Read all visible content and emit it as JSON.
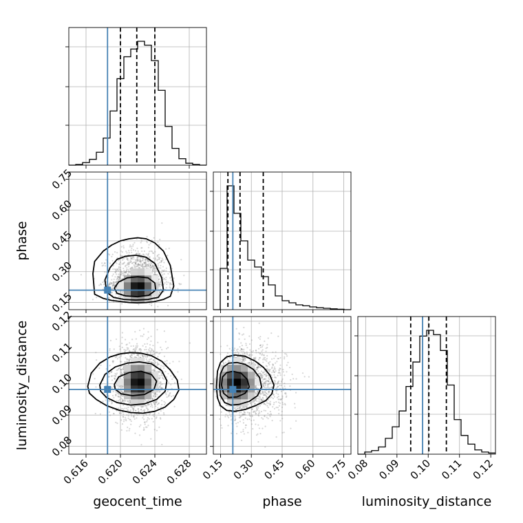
{
  "chart_data": {
    "type": "corner",
    "title": "",
    "parameters": [
      "geocent_time",
      "phase",
      "luminosity_distance"
    ],
    "truths": {
      "geocent_time": 0.6185,
      "phase": 0.21,
      "luminosity_distance": 0.0982
    },
    "colors": {
      "hist": "#000000",
      "truth": "#4682b4",
      "quantiles": "#000000",
      "points": "#8a8a8a",
      "density": "#000000",
      "grid": "#b0b0b0"
    },
    "ranges": {
      "geocent_time": [
        0.614,
        0.63
      ],
      "phase": [
        0.115,
        0.785
      ],
      "luminosity_distance": [
        0.0775,
        0.1215
      ]
    },
    "ticks": {
      "geocent_time": {
        "values": [
          0.616,
          0.62,
          0.624,
          0.628
        ],
        "labels": [
          "0.616",
          "0.620",
          "0.624",
          "0.628"
        ]
      },
      "phase": {
        "values": [
          0.15,
          0.3,
          0.45,
          0.6,
          0.75
        ],
        "labels": [
          "0.15",
          "0.30",
          "0.45",
          "0.60",
          "0.75"
        ]
      },
      "luminosity_distance": {
        "values": [
          0.08,
          0.09,
          0.1,
          0.11,
          0.12
        ],
        "labels": [
          "0.08",
          "0.09",
          "0.10",
          "0.11",
          "0.12"
        ]
      }
    },
    "marginals": {
      "geocent_time": {
        "edges": [
          0.614,
          0.6148,
          0.6156,
          0.6164,
          0.6172,
          0.618,
          0.6188,
          0.6196,
          0.6204,
          0.6212,
          0.622,
          0.6228,
          0.6236,
          0.6244,
          0.6252,
          0.626,
          0.6268,
          0.6276,
          0.6284,
          0.6292,
          0.63
        ],
        "counts": [
          0.0,
          0.005,
          0.02,
          0.045,
          0.1,
          0.21,
          0.42,
          0.67,
          0.84,
          0.9,
          0.96,
          0.93,
          0.81,
          0.58,
          0.3,
          0.13,
          0.05,
          0.015,
          0.005,
          0.0
        ],
        "quantiles": [
          0.62,
          0.6219,
          0.624
        ]
      },
      "phase": {
        "edges": [
          0.115,
          0.1485,
          0.182,
          0.2155,
          0.249,
          0.2825,
          0.316,
          0.3495,
          0.383,
          0.4165,
          0.45,
          0.4835,
          0.517,
          0.5505,
          0.584,
          0.6175,
          0.651,
          0.6845,
          0.718,
          0.7515,
          0.785
        ],
        "counts": [
          0.0,
          0.3,
          0.9,
          0.7,
          0.5,
          0.36,
          0.31,
          0.24,
          0.18,
          0.1,
          0.065,
          0.05,
          0.035,
          0.028,
          0.02,
          0.014,
          0.01,
          0.006,
          0.003,
          0.0
        ],
        "quantiles": [
          0.186,
          0.245,
          0.358
        ]
      },
      "luminosity_distance": {
        "edges": [
          0.0775,
          0.0797,
          0.0819,
          0.0841,
          0.0863,
          0.0885,
          0.0907,
          0.0929,
          0.0951,
          0.0973,
          0.0995,
          0.1017,
          0.1039,
          0.1061,
          0.1083,
          0.1105,
          0.1127,
          0.1149,
          0.1171,
          0.1193,
          0.1215
        ],
        "counts": [
          0.0,
          0.015,
          0.025,
          0.05,
          0.11,
          0.19,
          0.3,
          0.47,
          0.64,
          0.82,
          0.86,
          0.83,
          0.72,
          0.48,
          0.24,
          0.13,
          0.07,
          0.03,
          0.015,
          0.008
        ],
        "quantiles": [
          0.0944,
          0.1002,
          0.1058
        ]
      }
    },
    "joint": [
      {
        "x": "geocent_time",
        "y": "phase",
        "center": [
          0.6221,
          0.245
        ],
        "scatter_sd": [
          0.00165,
          0.085
        ],
        "density_sd": [
          0.00125,
          0.05
        ],
        "density_offset": [
          0.0,
          -0.02
        ],
        "contours": [
          {
            "level": "outer",
            "x": [
              0.6168,
              0.617,
              0.618,
              0.619,
              0.62,
              0.621,
              0.622,
              0.623,
              0.624,
              0.625,
              0.6258,
              0.6262,
              0.6258,
              0.625,
              0.624,
              0.623,
              0.622,
              0.621,
              0.62,
              0.619,
              0.618,
              0.617
            ],
            "y": [
              0.29,
              0.35,
              0.4,
              0.43,
              0.45,
              0.46,
              0.465,
              0.46,
              0.44,
              0.4,
              0.33,
              0.23,
              0.18,
              0.165,
              0.155,
              0.15,
              0.148,
              0.15,
              0.155,
              0.16,
              0.17,
              0.19
            ]
          },
          {
            "level": "middle",
            "x": [
              0.6182,
              0.6188,
              0.6196,
              0.6206,
              0.6218,
              0.623,
              0.624,
              0.6248,
              0.625,
              0.6244,
              0.6232,
              0.6218,
              0.6204,
              0.6192,
              0.6184
            ],
            "y": [
              0.26,
              0.32,
              0.36,
              0.375,
              0.38,
              0.37,
              0.34,
              0.27,
              0.21,
              0.175,
              0.165,
              0.162,
              0.165,
              0.175,
              0.2
            ]
          },
          {
            "level": "inner",
            "x": [
              0.6193,
              0.6198,
              0.6208,
              0.622,
              0.6232,
              0.624,
              0.6241,
              0.6233,
              0.622,
              0.6206,
              0.6196
            ],
            "y": [
              0.22,
              0.25,
              0.27,
              0.275,
              0.27,
              0.245,
              0.21,
              0.185,
              0.178,
              0.182,
              0.195
            ]
          }
        ]
      },
      {
        "x": "geocent_time",
        "y": "luminosity_distance",
        "center": [
          0.6221,
          0.1004
        ],
        "scatter_sd": [
          0.00165,
          0.0058
        ],
        "density_sd": [
          0.00125,
          0.0042
        ],
        "density_offset": [
          0.0,
          0.0
        ],
        "contours": [
          {
            "level": "outer",
            "x": [
              0.6162,
              0.6166,
              0.6176,
              0.6188,
              0.62,
              0.6212,
              0.6224,
              0.6236,
              0.6248,
              0.6258,
              0.6266,
              0.6268,
              0.6262,
              0.6252,
              0.624,
              0.6226,
              0.6212,
              0.6198,
              0.6184,
              0.6172,
              0.6164
            ],
            "y": [
              0.0992,
              0.1034,
              0.1066,
              0.1086,
              0.1096,
              0.11,
              0.1098,
              0.109,
              0.1072,
              0.1044,
              0.1012,
              0.098,
              0.095,
              0.0926,
              0.0912,
              0.0906,
              0.0908,
              0.0916,
              0.093,
              0.095,
              0.097
            ]
          },
          {
            "level": "middle",
            "x": [
              0.6176,
              0.6182,
              0.6194,
              0.6208,
              0.6222,
              0.6236,
              0.6248,
              0.6254,
              0.6252,
              0.6242,
              0.6228,
              0.6212,
              0.6196,
              0.6184,
              0.6177
            ],
            "y": [
              0.0996,
              0.103,
              0.1054,
              0.1066,
              0.107,
              0.1064,
              0.1042,
              0.101,
              0.0976,
              0.095,
              0.0936,
              0.0932,
              0.094,
              0.0956,
              0.0976
            ]
          },
          {
            "level": "inner",
            "x": [
              0.6193,
              0.6198,
              0.621,
              0.6224,
              0.6236,
              0.6242,
              0.6239,
              0.6228,
              0.6214,
              0.6201,
              0.6194
            ],
            "y": [
              0.0998,
              0.1022,
              0.1036,
              0.104,
              0.103,
              0.1008,
              0.0982,
              0.0966,
              0.0962,
              0.0968,
              0.0982
            ]
          }
        ]
      },
      {
        "x": "phase",
        "y": "luminosity_distance",
        "center": [
          0.27,
          0.1002
        ],
        "scatter_sd": [
          0.095,
          0.0058
        ],
        "density_sd": [
          0.06,
          0.0042
        ],
        "density_offset": [
          -0.04,
          0.0
        ],
        "contours": [
          {
            "level": "outer",
            "x": [
              0.13,
              0.135,
              0.15,
              0.18,
              0.22,
              0.27,
              0.32,
              0.36,
              0.39,
              0.41,
              0.4,
              0.37,
              0.32,
              0.27,
              0.22,
              0.18,
              0.15,
              0.135
            ],
            "y": [
              0.099,
              0.104,
              0.1068,
              0.1086,
              0.1092,
              0.1088,
              0.1072,
              0.1052,
              0.1028,
              0.0996,
              0.0968,
              0.0946,
              0.093,
              0.0918,
              0.0912,
              0.0915,
              0.093,
              0.0955
            ]
          },
          {
            "level": "middle",
            "x": [
              0.145,
              0.15,
              0.165,
              0.19,
              0.23,
              0.27,
              0.31,
              0.34,
              0.35,
              0.33,
              0.29,
              0.24,
              0.2,
              0.17,
              0.15
            ],
            "y": [
              0.0994,
              0.1032,
              0.1054,
              0.1066,
              0.1068,
              0.1062,
              0.1046,
              0.102,
              0.099,
              0.0962,
              0.0944,
              0.0934,
              0.0932,
              0.094,
              0.0962
            ]
          },
          {
            "level": "inner",
            "x": [
              0.155,
              0.16,
              0.18,
              0.21,
              0.25,
              0.28,
              0.29,
              0.27,
              0.23,
              0.19,
              0.165
            ],
            "y": [
              0.0996,
              0.1022,
              0.1036,
              0.104,
              0.1034,
              0.1014,
              0.099,
              0.097,
              0.0958,
              0.0956,
              0.097
            ]
          }
        ]
      }
    ],
    "grid": true
  }
}
